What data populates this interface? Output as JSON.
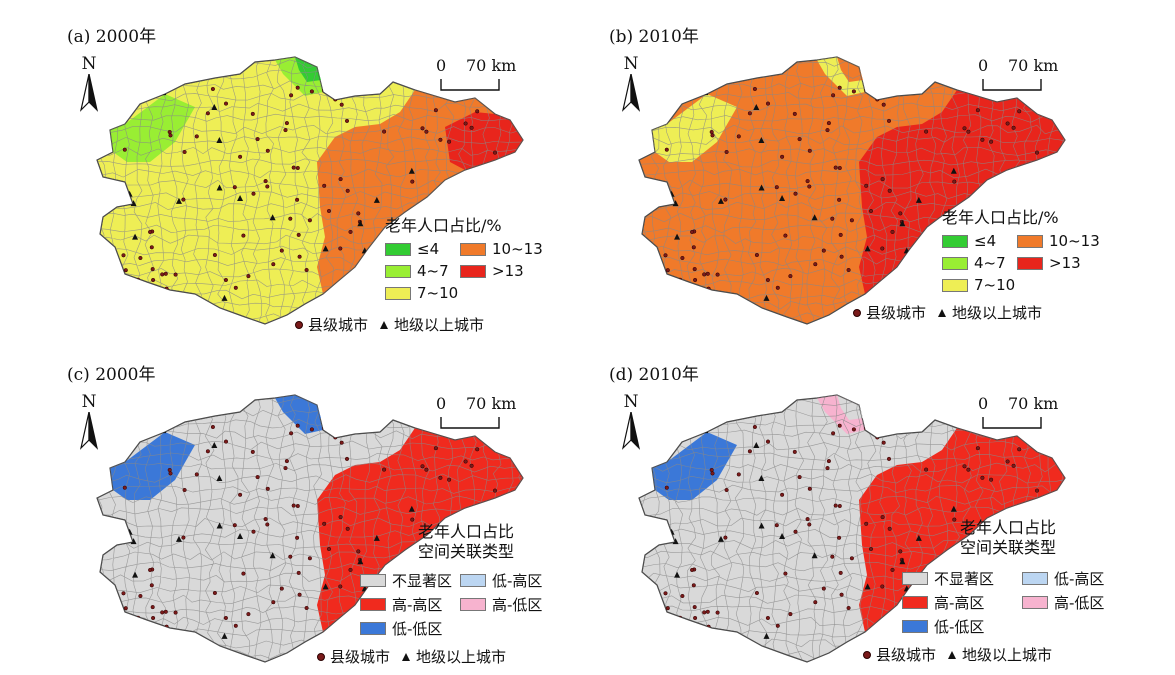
{
  "panels": [
    {
      "id": "a",
      "title": "(a) 2000年",
      "north": "N",
      "scale": {
        "zero": "0",
        "distance": "70 km"
      },
      "legend": {
        "title": "老年人口占比/%",
        "items": [
          {
            "label": "≤4",
            "color": "#33cc33"
          },
          {
            "label": "10~13",
            "color": "#f07a2a"
          },
          {
            "label": "4~7",
            "color": "#99ee33"
          },
          {
            "label": ">13",
            "color": "#e8251c"
          },
          {
            "label": "7~10",
            "color": "#eeee55"
          }
        ]
      },
      "city_legend": {
        "county": "县级城市",
        "prefecture": "地级以上城市"
      },
      "fills": {
        "west": "#eeee55",
        "west_patch": "#99ee33",
        "east": "#f07a2a",
        "east_hot": "#e8251c",
        "nub": "#99ee33",
        "nub2": "#33cc33"
      }
    },
    {
      "id": "b",
      "title": "(b) 2010年",
      "north": "N",
      "scale": {
        "zero": "0",
        "distance": "70 km"
      },
      "legend": {
        "title": "老年人口占比/%",
        "items": [
          {
            "label": "≤4",
            "color": "#33cc33"
          },
          {
            "label": "10~13",
            "color": "#f07a2a"
          },
          {
            "label": "4~7",
            "color": "#99ee33"
          },
          {
            "label": ">13",
            "color": "#e8251c"
          },
          {
            "label": "7~10",
            "color": "#eeee55"
          }
        ]
      },
      "city_legend": {
        "county": "县级城市",
        "prefecture": "地级以上城市"
      },
      "fills": {
        "west": "#f07a2a",
        "west_patch": "#eeee55",
        "east": "#e8251c",
        "east_hot": "#e8251c",
        "nub": "#eeee55",
        "nub2": "#f07a2a"
      }
    },
    {
      "id": "c",
      "title": "(c) 2000年",
      "north": "N",
      "scale": {
        "zero": "0",
        "distance": "70 km"
      },
      "legend": {
        "title": "老年人口占比\n空间关联类型",
        "items": [
          {
            "label": "不显著区",
            "color": "#d9d9d9"
          },
          {
            "label": "低-高区",
            "color": "#bcd6f2"
          },
          {
            "label": "高-高区",
            "color": "#f02a1e"
          },
          {
            "label": "高-低区",
            "color": "#f7b3cf"
          },
          {
            "label": "低-低区",
            "color": "#3b78d8"
          }
        ]
      },
      "city_legend": {
        "county": "县级城市",
        "prefecture": "地级以上城市"
      },
      "fills": {
        "west": "#d9d9d9",
        "west_patch": "#3b78d8",
        "east": "#f02a1e",
        "east_hot": "#f02a1e",
        "nub": "#3b78d8",
        "nub2": "#3b78d8"
      }
    },
    {
      "id": "d",
      "title": "(d) 2010年",
      "north": "N",
      "scale": {
        "zero": "0",
        "distance": "70 km"
      },
      "legend": {
        "title": "老年人口占比\n空间关联类型",
        "items": [
          {
            "label": "不显著区",
            "color": "#d9d9d9"
          },
          {
            "label": "低-高区",
            "color": "#bcd6f2"
          },
          {
            "label": "高-高区",
            "color": "#f02a1e"
          },
          {
            "label": "高-低区",
            "color": "#f7b3cf"
          },
          {
            "label": "低-低区",
            "color": "#3b78d8"
          }
        ]
      },
      "city_legend": {
        "county": "县级城市",
        "prefecture": "地级以上城市"
      },
      "fills": {
        "west": "#d9d9d9",
        "west_patch": "#3b78d8",
        "east": "#f02a1e",
        "east_hot": "#f02a1e",
        "nub": "#f7b3cf",
        "nub2": "#d9d9d9"
      }
    }
  ]
}
